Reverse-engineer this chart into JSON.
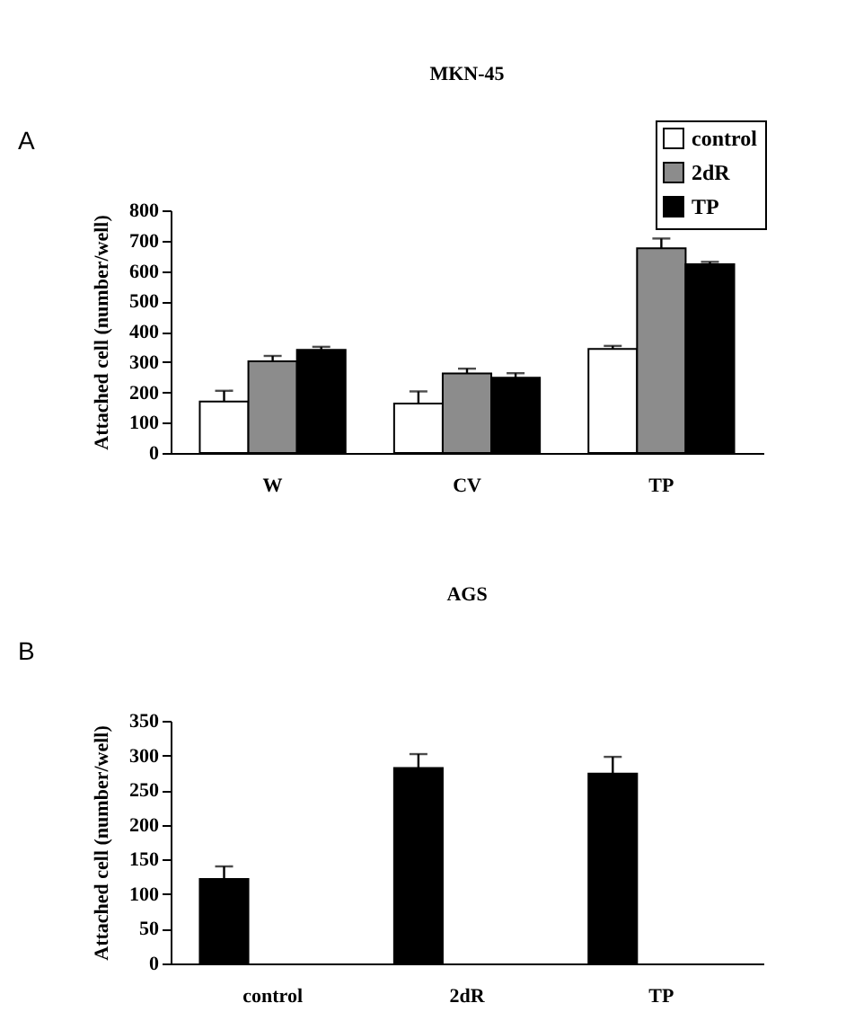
{
  "chart_data": [
    {
      "type": "bar",
      "title": "MKN-45",
      "ylabel": "Attached cell (number/well)",
      "annotations": [
        "A"
      ],
      "categories": [
        "W",
        "CV",
        "TP"
      ],
      "series": [
        {
          "name": "control",
          "color": "#ffffff",
          "values": [
            170,
            163,
            343
          ],
          "errors": [
            [
              170,
              205
            ],
            [
              163,
              203
            ],
            [
              343,
              353
            ]
          ]
        },
        {
          "name": "2dR",
          "color": "#8c8c8c",
          "values": [
            302,
            262,
            675
          ],
          "errors": [
            [
              302,
              320
            ],
            [
              262,
              278
            ],
            [
              675,
              707
            ]
          ]
        },
        {
          "name": "TP",
          "color": "#000000",
          "values": [
            340,
            248,
            622
          ],
          "errors": [
            [
              340,
              350
            ],
            [
              248,
              263
            ],
            [
              622,
              630
            ]
          ]
        }
      ],
      "ylim": [
        0,
        800
      ],
      "yticks": [
        0,
        100,
        200,
        300,
        400,
        500,
        600,
        700,
        800
      ],
      "legend": "top right"
    },
    {
      "type": "bar",
      "title": "AGS",
      "ylabel": "Attached cell (number/well)",
      "annotations": [
        "B"
      ],
      "categories": [
        "control",
        "2dR",
        "TP"
      ],
      "values": [
        122,
        282,
        274
      ],
      "color": "#000000",
      "errors": [
        [
          122,
          140
        ],
        [
          282,
          302
        ],
        [
          274,
          298
        ]
      ],
      "ylim": [
        0,
        350
      ],
      "yticks": [
        0,
        50,
        100,
        150,
        200,
        250,
        300,
        350
      ]
    }
  ]
}
